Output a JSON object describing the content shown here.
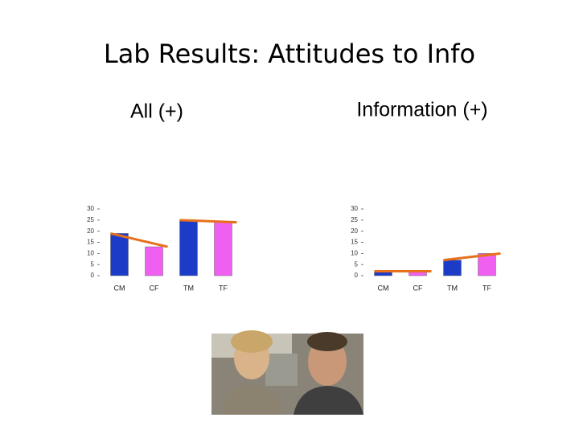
{
  "title": "Lab Results: Attitudes to Info",
  "chart_data": [
    {
      "type": "bar",
      "title": "All (+)",
      "categories": [
        "CM",
        "CF",
        "TM",
        "TF"
      ],
      "values": [
        19,
        13,
        25,
        24
      ],
      "colors": [
        "#1c3cc8",
        "#f060f0",
        "#1c3cc8",
        "#f060f0"
      ],
      "trend_color": "#e8701a",
      "ylim": [
        0,
        30
      ],
      "yticks": [
        0,
        5,
        10,
        15,
        20,
        25,
        30
      ]
    },
    {
      "type": "bar",
      "title": "Information (+)",
      "categories": [
        "CM",
        "CF",
        "TM",
        "TF"
      ],
      "values": [
        2,
        2,
        7,
        10
      ],
      "colors": [
        "#1c3cc8",
        "#f060f0",
        "#1c3cc8",
        "#f060f0"
      ],
      "trend_color": "#e8701a",
      "ylim": [
        0,
        30
      ],
      "yticks": [
        0,
        5,
        10,
        15,
        20,
        25,
        30
      ]
    }
  ]
}
